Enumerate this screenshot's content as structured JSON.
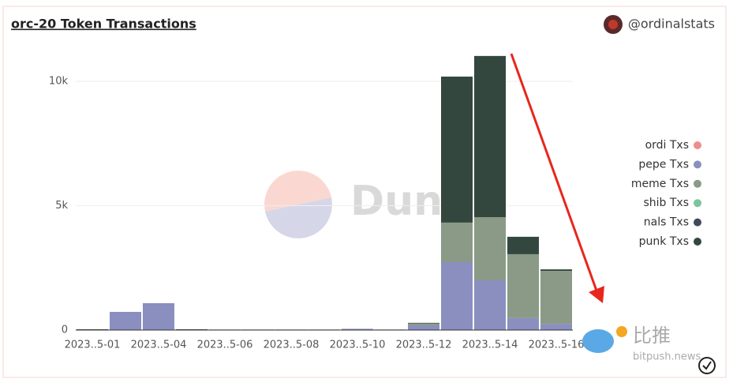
{
  "chart_data": {
    "type": "stacked_bar",
    "title": "orc-20 Token Transactions",
    "author": "@ordinalstats",
    "annotations": [
      "Dune",
      "比推",
      "bitpush.news"
    ],
    "categories": [
      "2023..5-01",
      null,
      "2023..5-04",
      null,
      "2023..5-06",
      null,
      "2023..5-08",
      null,
      "2023..5-10",
      null,
      "2023..5-12",
      null,
      "2023..5-14",
      null,
      "2023..5-16"
    ],
    "series": [
      {
        "name": "ordi Txs",
        "color": "#f08c8c",
        "values": [
          0,
          0,
          0,
          0,
          0,
          0,
          0,
          0,
          0,
          0,
          0,
          0,
          0,
          0,
          0
        ]
      },
      {
        "name": "pepe Txs",
        "color": "#8a8fc0",
        "values": [
          0,
          730,
          1080,
          0,
          0,
          0,
          0,
          0,
          50,
          0,
          190,
          2730,
          2000,
          480,
          250
        ]
      },
      {
        "name": "meme Txs",
        "color": "#8a9a86",
        "values": [
          0,
          0,
          0,
          0,
          0,
          0,
          0,
          0,
          0,
          0,
          80,
          1590,
          2540,
          2570,
          2130
        ]
      },
      {
        "name": "shib Txs",
        "color": "#7cc49a",
        "values": [
          0,
          0,
          0,
          0,
          0,
          0,
          0,
          0,
          0,
          0,
          0,
          0,
          0,
          0,
          0
        ]
      },
      {
        "name": "nals Txs",
        "color": "#3f4a5e",
        "values": [
          0,
          0,
          0,
          0,
          0,
          0,
          0,
          0,
          0,
          0,
          0,
          0,
          0,
          0,
          0
        ]
      },
      {
        "name": "punk Txs",
        "color": "#33473f",
        "values": [
          30,
          0,
          0,
          30,
          20,
          20,
          20,
          20,
          0,
          20,
          20,
          5870,
          6480,
          700,
          60
        ]
      }
    ],
    "ylim": [
      0,
      11500
    ],
    "yticks": [
      0,
      {
        "value": 5000,
        "label": "5k"
      },
      {
        "value": 10000,
        "label": "10k"
      }
    ],
    "grid": true,
    "legend": "right"
  }
}
